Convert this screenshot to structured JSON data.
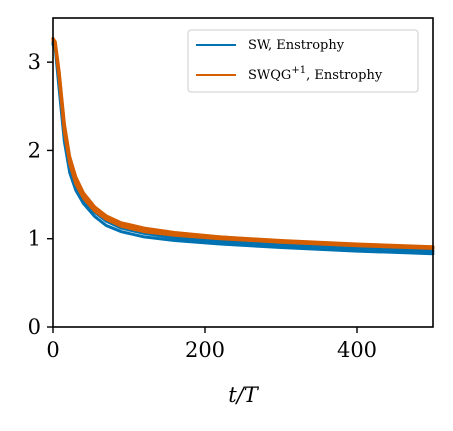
{
  "chart_data": {
    "type": "line",
    "title": "",
    "xlabel": "t/T",
    "ylabel": "",
    "xlim": [
      0,
      500
    ],
    "ylim": [
      0,
      3.5
    ],
    "xticks": [
      0,
      200,
      400
    ],
    "yticks": [
      0,
      1,
      2,
      3
    ],
    "grid": false,
    "legend_position": "top-right",
    "series": [
      {
        "name": "SW, Enstrophy",
        "color": "#0072B2",
        "runs": [
          {
            "x": [
              0,
              3,
              8,
              15,
              22,
              30,
              40,
              55,
              70,
              90,
              120,
              160,
              220,
              300,
              400,
              500
            ],
            "y": [
              3.2,
              3.15,
              2.7,
              2.1,
              1.75,
              1.55,
              1.4,
              1.25,
              1.15,
              1.08,
              1.02,
              0.98,
              0.94,
              0.9,
              0.86,
              0.83
            ]
          },
          {
            "x": [
              0,
              3,
              8,
              15,
              22,
              30,
              40,
              55,
              70,
              90,
              120,
              160,
              220,
              300,
              400,
              500
            ],
            "y": [
              3.2,
              3.18,
              2.8,
              2.2,
              1.85,
              1.6,
              1.45,
              1.3,
              1.2,
              1.12,
              1.06,
              1.01,
              0.97,
              0.93,
              0.89,
              0.86
            ]
          },
          {
            "x": [
              0,
              3,
              8,
              15,
              22,
              30,
              40,
              55,
              70,
              90,
              120,
              160,
              220,
              300,
              400,
              500
            ],
            "y": [
              3.22,
              3.2,
              2.85,
              2.25,
              1.9,
              1.65,
              1.48,
              1.32,
              1.23,
              1.15,
              1.09,
              1.04,
              1.0,
              0.96,
              0.92,
              0.89
            ]
          }
        ]
      },
      {
        "name": "SWQG+1, Enstrophy",
        "color": "#D55E00",
        "runs": [
          {
            "x": [
              0,
              3,
              8,
              15,
              22,
              30,
              40,
              55,
              70,
              90,
              120,
              160,
              220,
              300,
              400,
              500
            ],
            "y": [
              3.25,
              3.2,
              2.85,
              2.25,
              1.88,
              1.65,
              1.48,
              1.33,
              1.24,
              1.16,
              1.1,
              1.05,
              1.01,
              0.97,
              0.93,
              0.9
            ]
          },
          {
            "x": [
              0,
              3,
              8,
              15,
              22,
              30,
              40,
              55,
              70,
              90,
              120,
              160,
              220,
              300,
              400,
              500
            ],
            "y": [
              3.27,
              3.23,
              2.9,
              2.3,
              1.93,
              1.7,
              1.52,
              1.36,
              1.26,
              1.18,
              1.12,
              1.07,
              1.02,
              0.98,
              0.94,
              0.91
            ]
          },
          {
            "x": [
              0,
              3,
              8,
              15,
              22,
              30,
              40,
              55,
              70,
              90,
              120,
              160,
              220,
              300,
              400,
              500
            ],
            "y": [
              3.24,
              3.19,
              2.82,
              2.2,
              1.85,
              1.62,
              1.46,
              1.31,
              1.22,
              1.14,
              1.08,
              1.04,
              1.0,
              0.96,
              0.92,
              0.89
            ]
          },
          {
            "x": [
              0,
              3,
              8,
              15,
              22,
              30,
              40,
              55,
              70,
              90,
              120,
              160,
              220,
              300,
              400,
              500
            ],
            "y": [
              3.26,
              3.21,
              2.88,
              2.28,
              1.9,
              1.68,
              1.5,
              1.35,
              1.25,
              1.17,
              1.11,
              1.06,
              1.02,
              0.97,
              0.93,
              0.9
            ]
          }
        ]
      }
    ]
  },
  "legend": {
    "sw_label": "SW, Enstrophy",
    "swqg_label_base": "SWQG",
    "swqg_label_sup": "+1",
    "swqg_label_rest": ", Enstrophy"
  }
}
